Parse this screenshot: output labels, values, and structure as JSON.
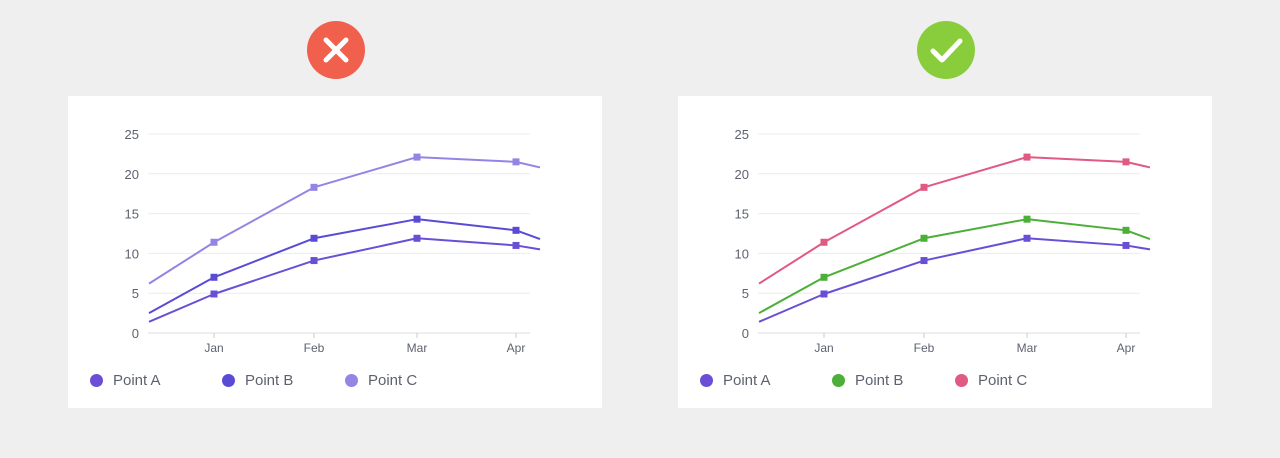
{
  "badges": {
    "bad": {
      "icon": "x-icon",
      "color": "#f0604c"
    },
    "good": {
      "icon": "checkmark-icon",
      "color": "#8acd3c"
    }
  },
  "chart_data": [
    {
      "type": "line",
      "categories": [
        "Jan",
        "Feb",
        "Mar",
        "Apr"
      ],
      "ylim": [
        0,
        25
      ],
      "yticks": [
        "0",
        "5",
        "10",
        "15",
        "20",
        "25"
      ],
      "grid": true,
      "legend_position": "bottom-left",
      "series": [
        {
          "name": "Point A",
          "color": "#6a4fd6",
          "values": [
            4.9,
            9.1,
            11.9,
            11.0
          ],
          "start": 1.4,
          "end": 10.5
        },
        {
          "name": "Point B",
          "color": "#5a4bd6",
          "values": [
            7.0,
            11.9,
            14.3,
            12.9
          ],
          "start": 2.5,
          "end": 11.8
        },
        {
          "name": "Point C",
          "color": "#9484e4",
          "values": [
            11.4,
            18.3,
            22.1,
            21.5
          ],
          "start": 6.2,
          "end": 20.8
        }
      ]
    },
    {
      "type": "line",
      "categories": [
        "Jan",
        "Feb",
        "Mar",
        "Apr"
      ],
      "ylim": [
        0,
        25
      ],
      "yticks": [
        "0",
        "5",
        "10",
        "15",
        "20",
        "25"
      ],
      "grid": true,
      "legend_position": "bottom-left",
      "series": [
        {
          "name": "Point A",
          "color": "#6a4fd6",
          "values": [
            4.9,
            9.1,
            11.9,
            11.0
          ],
          "start": 1.4,
          "end": 10.5
        },
        {
          "name": "Point B",
          "color": "#4caf38",
          "values": [
            7.0,
            11.9,
            14.3,
            12.9
          ],
          "start": 2.5,
          "end": 11.8
        },
        {
          "name": "Point C",
          "color": "#e05a83",
          "values": [
            11.4,
            18.3,
            22.1,
            21.5
          ],
          "start": 6.2,
          "end": 20.8
        }
      ]
    }
  ]
}
